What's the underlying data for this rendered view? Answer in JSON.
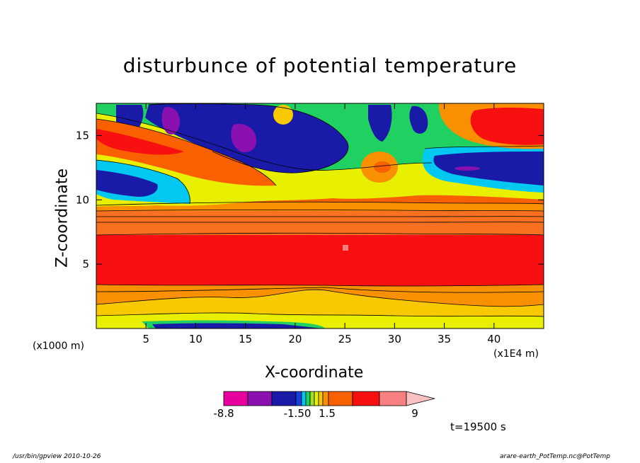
{
  "chart_data": {
    "type": "heatmap",
    "title": "disturbunce of potential temperature",
    "xlabel": "X-coordinate",
    "ylabel": "Z-coordinate",
    "x_unit": "(x1E4 m)",
    "y_unit": "(x1000 m)",
    "xlim": [
      0,
      45
    ],
    "ylim": [
      0,
      17.5
    ],
    "x_ticks": [
      5,
      10,
      15,
      20,
      25,
      30,
      35,
      40
    ],
    "y_ticks": [
      5,
      10,
      15
    ],
    "colorbar": {
      "colors": [
        "#e8009e",
        "#8a10b0",
        "#1a1aa8",
        "#1840e0",
        "#00c8f0",
        "#20d060",
        "#a0e020",
        "#e8f000",
        "#f8c800",
        "#f89000",
        "#f86000",
        "#f81010",
        "#f88080",
        "#f8c0c0"
      ],
      "labels": [
        "-8.8",
        "-1.50",
        "1.5",
        "9"
      ]
    },
    "time_label": "t=19500 s"
  },
  "footer": {
    "left": "/usr/bin/gpview   2010-10-26",
    "right": "arare-earth_PotTemp.nc@PotTemp"
  }
}
